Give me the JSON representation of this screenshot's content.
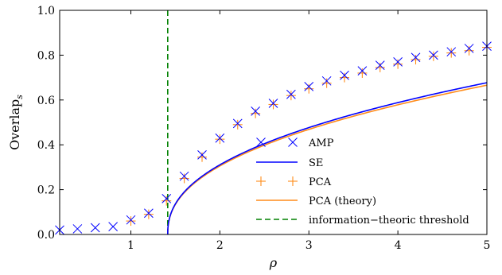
{
  "chart_data": {
    "type": "line",
    "xlabel": "ρ",
    "ylabel_main": "Overlap",
    "ylabel_sub": "s",
    "xlim": [
      0.2,
      5.0
    ],
    "ylim": [
      0.0,
      1.0
    ],
    "xticks": [
      1,
      2,
      3,
      4,
      5
    ],
    "yticks": [
      0.0,
      0.2,
      0.4,
      0.6,
      0.8,
      1.0
    ],
    "xtick_labels": [
      "1",
      "2",
      "3",
      "4",
      "5"
    ],
    "ytick_labels": [
      "0.0",
      "0.2",
      "0.4",
      "0.6",
      "0.8",
      "1.0"
    ],
    "grid": false,
    "legend_position": "center-right",
    "threshold_x": 1.414,
    "series": [
      {
        "name": "AMP",
        "kind": "scatter",
        "marker": "x",
        "color": "#0000ff",
        "x": [
          0.2,
          0.4,
          0.6,
          0.8,
          1.0,
          1.2,
          1.4,
          1.6,
          1.8,
          2.0,
          2.2,
          2.4,
          2.6,
          2.8,
          3.0,
          3.2,
          3.4,
          3.6,
          3.8,
          4.0,
          4.2,
          4.4,
          4.6,
          4.8,
          5.0
        ],
        "y": [
          0.02,
          0.025,
          0.03,
          0.035,
          0.065,
          0.095,
          0.16,
          0.26,
          0.355,
          0.43,
          0.495,
          0.55,
          0.585,
          0.625,
          0.66,
          0.685,
          0.71,
          0.73,
          0.755,
          0.77,
          0.79,
          0.8,
          0.815,
          0.83,
          0.84
        ]
      },
      {
        "name": "SE",
        "kind": "line",
        "color": "#0000ff"
      },
      {
        "name": "PCA",
        "kind": "scatter",
        "marker": "+",
        "color": "#ff8c1a",
        "x": [
          1.0,
          1.2,
          1.4,
          1.6,
          1.8,
          2.0,
          2.2,
          2.4,
          2.6,
          2.8,
          3.0,
          3.2,
          3.4,
          3.6,
          3.8,
          4.0,
          4.2,
          4.4,
          4.6,
          4.8,
          5.0
        ],
        "y": [
          0.06,
          0.09,
          0.15,
          0.25,
          0.345,
          0.425,
          0.49,
          0.54,
          0.58,
          0.62,
          0.65,
          0.675,
          0.7,
          0.72,
          0.745,
          0.76,
          0.78,
          0.795,
          0.81,
          0.82,
          0.835
        ]
      },
      {
        "name": "PCA (theory)",
        "kind": "line",
        "color": "#ff8c1a"
      },
      {
        "name": "information−theoric threshold",
        "kind": "vline",
        "color": "#008000"
      }
    ]
  }
}
